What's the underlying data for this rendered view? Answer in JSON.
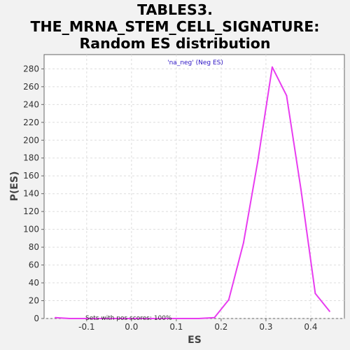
{
  "chart_data": {
    "type": "line",
    "title_lines": [
      "TABLES3.",
      "THE_MRNA_STEM_CELL_SIGNATURE:",
      "Random ES distribution"
    ],
    "xlabel": "ES",
    "ylabel": "P(ES)",
    "xlim": [
      -0.195,
      0.475
    ],
    "ylim": [
      0,
      296
    ],
    "xticks": [
      -0.1,
      0.0,
      0.1,
      0.2,
      0.3,
      0.4
    ],
    "xtick_labels": [
      "-0.1",
      "0.0",
      "0.1",
      "0.2",
      "0.3",
      "0.4"
    ],
    "yticks": [
      0,
      20,
      40,
      60,
      80,
      100,
      120,
      140,
      160,
      180,
      200,
      220,
      240,
      260,
      280
    ],
    "grid": true,
    "legend_position": "top-center",
    "series": [
      {
        "name": "'na_neg' (Neg ES)",
        "color": "#e83cf0",
        "x": [
          -0.17,
          -0.138,
          -0.106,
          -0.074,
          -0.042,
          -0.01,
          0.022,
          0.054,
          0.086,
          0.118,
          0.15,
          0.185,
          0.217,
          0.25,
          0.282,
          0.314,
          0.346,
          0.378,
          0.41,
          0.442
        ],
        "y": [
          1,
          0,
          0,
          0,
          0,
          0,
          0,
          0,
          0,
          0,
          0,
          1,
          21,
          85,
          177,
          282,
          250,
          145,
          28,
          8
        ]
      }
    ],
    "annotation": "Sets with pos scores: 100%"
  },
  "colors": {
    "background": "#f2f2f2",
    "plot_background": "#ffffff",
    "grid": "#dddddd",
    "legend_text": "#2b12c4"
  }
}
